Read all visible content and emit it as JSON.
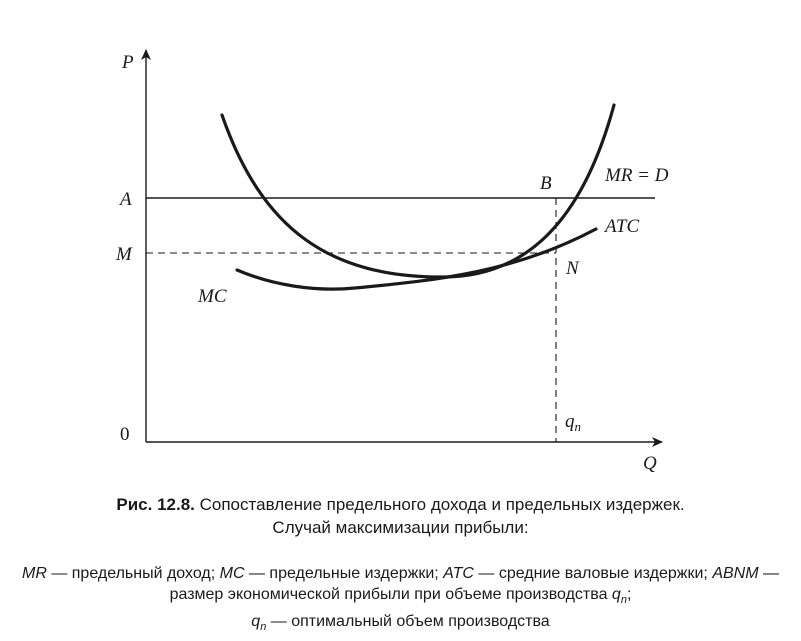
{
  "diagram": {
    "axis_y_label": "P",
    "axis_x_label": "Q",
    "origin_label": "0",
    "price_label_A": "A",
    "price_label_M": "M",
    "point_B": "B",
    "point_N": "N",
    "curve_mr_label": "MR = D",
    "curve_atc_label": "ATC",
    "curve_mc_label": "MC",
    "qn_label": "q",
    "qn_sub": "n"
  },
  "caption": {
    "number": "Рис. 12.8.",
    "line1": "Сопоставление предельного дохода и предельных издержек.",
    "line2": "Случай максимизации прибыли:"
  },
  "legend": {
    "mr": "MR",
    "mr_text": " — предельный доход; ",
    "mc": "MC",
    "mc_text": " — предельные издержки; ",
    "atc": "ATC",
    "atc_text": " — средние валовые издержки; ",
    "abnm": "ABNM",
    "abnm_text": " — размер экономической прибыли при объеме производства ",
    "q1": "q",
    "q1_sub": "n",
    "sep": ";",
    "q2": "q",
    "q2_sub": "n",
    "q2_text": " — оптимальный объем производства"
  }
}
